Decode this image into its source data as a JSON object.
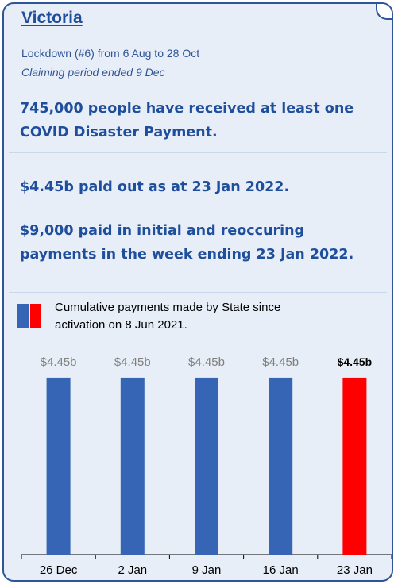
{
  "header": {
    "title": "Victoria",
    "lockdown_line": "Lockdown (#6) from 6 Aug to 28 Oct",
    "claiming_line": "Claiming period ended 9 Dec"
  },
  "stats": {
    "people_received": "745,000 people have received at least one COVID Disaster Payment.",
    "paid_out": "$4.45b paid out as at 23 Jan 2022.",
    "weekly_paid": "$9,000 paid in initial and reoccuring payments in the week ending 23 Jan 2022."
  },
  "legend": {
    "text": "Cumulative payments made by State since activation on 8 Jun 2021."
  },
  "colors": {
    "accent": "#1f4e9c",
    "bar_blue": "#3565b4",
    "bar_highlight": "#ff0000",
    "card_background": "#e8eef7"
  },
  "chart_data": {
    "type": "bar",
    "categories": [
      "26 Dec",
      "2 Jan",
      "9 Jan",
      "16 Jan",
      "23 Jan"
    ],
    "values": [
      4.45,
      4.45,
      4.45,
      4.45,
      4.45
    ],
    "data_labels": [
      "$4.45b",
      "$4.45b",
      "$4.45b",
      "$4.45b",
      "$4.45b"
    ],
    "highlight_index": 4,
    "unit": "$ billion",
    "ylim": [
      0,
      7.5
    ],
    "grid": false
  }
}
